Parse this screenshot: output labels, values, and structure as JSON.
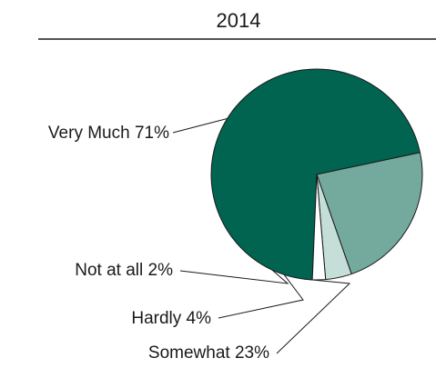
{
  "chart_data": {
    "type": "pie",
    "title": "2014",
    "slices": [
      {
        "label": "Very Much 71%",
        "name": "Very Much",
        "value": 71,
        "color": "#006450"
      },
      {
        "label": "Somewhat 23%",
        "name": "Somewhat",
        "value": 23,
        "color": "#74a99d"
      },
      {
        "label": "Hardly 4%",
        "name": "Hardly",
        "value": 4,
        "color": "#c5dfd8"
      },
      {
        "label": "Not at all 2%",
        "name": "Not at all",
        "value": 2,
        "color": "#ffffff"
      }
    ],
    "legend": "none"
  }
}
